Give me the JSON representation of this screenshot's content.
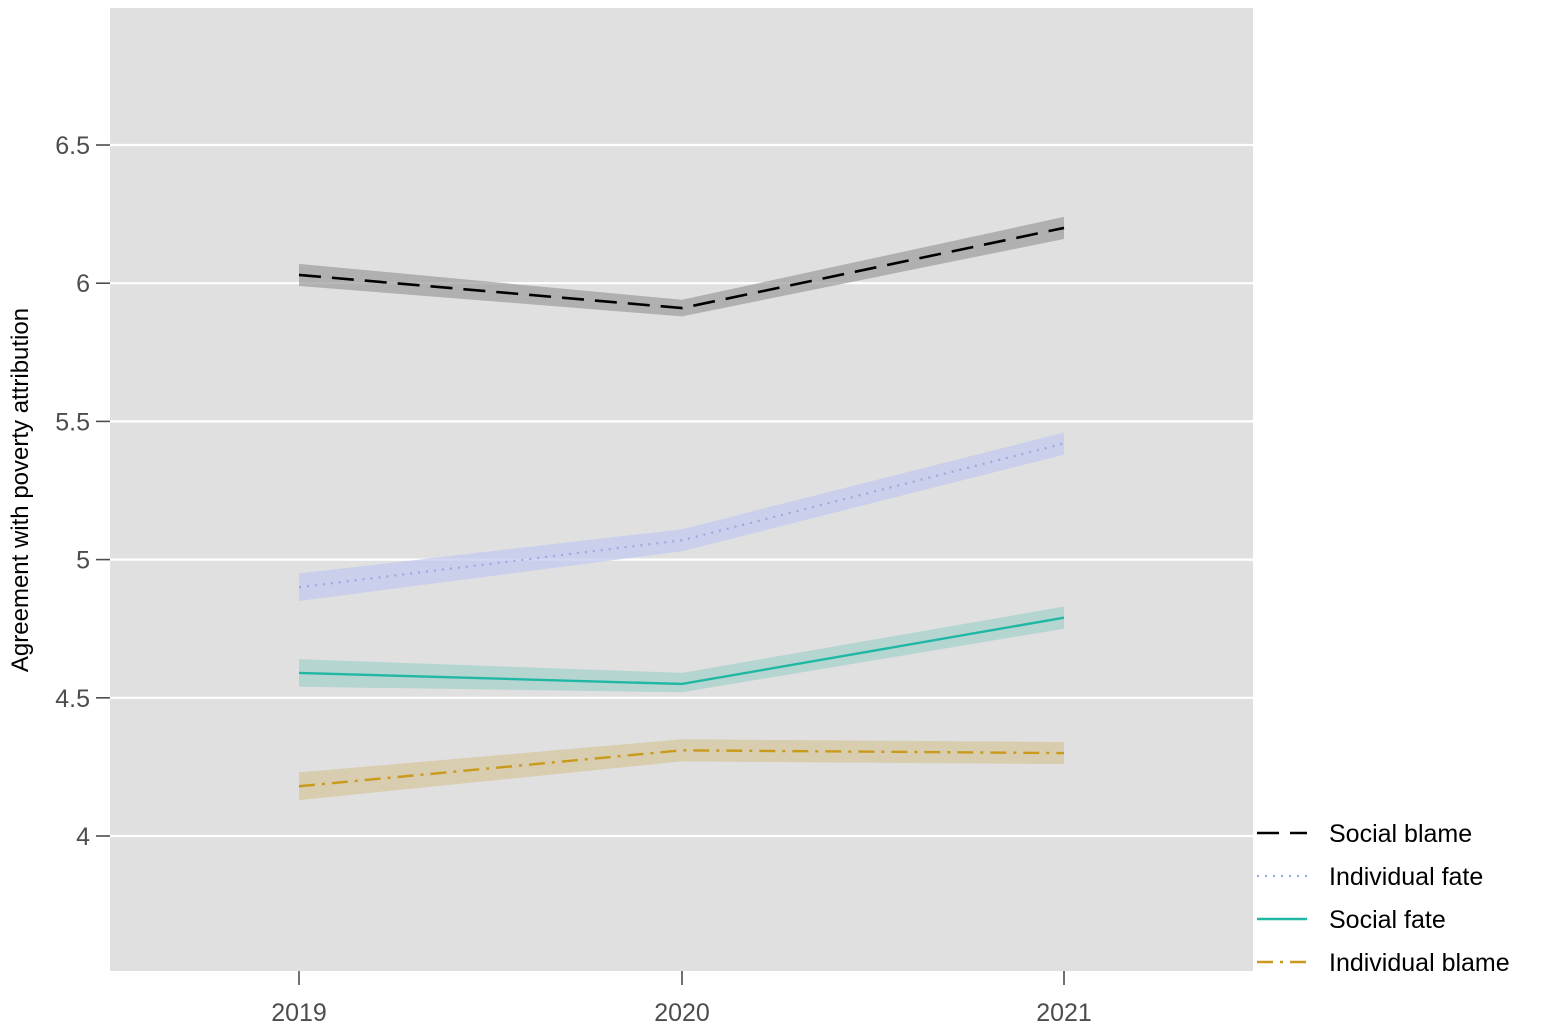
{
  "chart_data": {
    "type": "line",
    "title": "",
    "xlabel": "",
    "ylabel": "Agreement with poverty attribution",
    "x": [
      "2019",
      "2020",
      "2021"
    ],
    "yticks": [
      "4",
      "4.5",
      "5",
      "5.5",
      "6",
      "6.5"
    ],
    "ylim": [
      3.5,
      6.99
    ],
    "grid": true,
    "legend_position": "bottom-right",
    "series": [
      {
        "name": "Social blame",
        "values": [
          6.03,
          5.91,
          6.2
        ],
        "lower": [
          5.99,
          5.88,
          6.16
        ],
        "upper": [
          6.07,
          5.94,
          6.24
        ],
        "color": "#000000",
        "band_color": "#a0a0a0",
        "dash": "dashed"
      },
      {
        "name": "Individual fate",
        "values": [
          4.9,
          5.07,
          5.42
        ],
        "lower": [
          4.85,
          5.03,
          5.38
        ],
        "upper": [
          4.95,
          5.11,
          5.46
        ],
        "color": "#9aa9e0",
        "band_color": "#c3cbef",
        "dash": "dotted"
      },
      {
        "name": "Social fate",
        "values": [
          4.59,
          4.55,
          4.79
        ],
        "lower": [
          4.54,
          4.52,
          4.75
        ],
        "upper": [
          4.64,
          4.59,
          4.83
        ],
        "color": "#20b8a4",
        "band_color": "#a6d2cb",
        "dash": "solid"
      },
      {
        "name": "Individual blame",
        "values": [
          4.18,
          4.31,
          4.3
        ],
        "lower": [
          4.13,
          4.27,
          4.26
        ],
        "upper": [
          4.23,
          4.35,
          4.34
        ],
        "color": "#c99a1c",
        "band_color": "#d5c79f",
        "dash": "dashdot"
      }
    ]
  }
}
